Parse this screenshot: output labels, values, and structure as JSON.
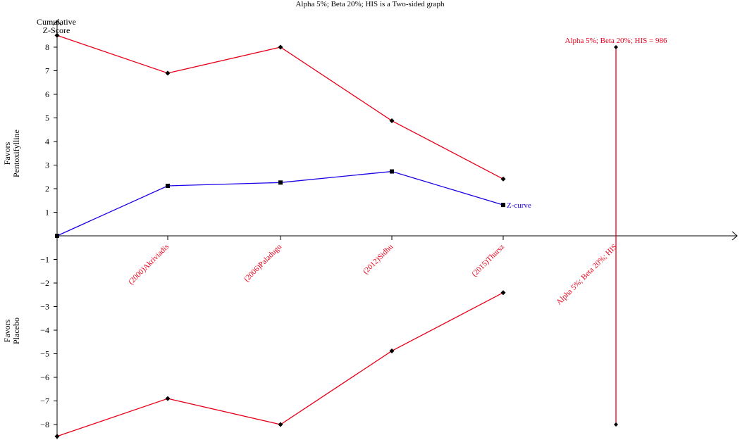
{
  "chart_data": {
    "type": "line",
    "title": "Alpha 5%; Beta 20%; HIS is a Two-sided graph",
    "ylabel": [
      "Cumulative",
      "Z-Score"
    ],
    "side_labels": {
      "upper": [
        "Favors",
        "Pentoxifylline"
      ],
      "lower": [
        "Favors",
        "Placebo"
      ]
    },
    "yticks": [
      8,
      7,
      6,
      5,
      4,
      3,
      2,
      1,
      -1,
      -2,
      -3,
      -4,
      -5,
      -6,
      -7,
      -8
    ],
    "ylim": [
      -8.5,
      8.5
    ],
    "categories": [
      "(2000)Akriviadis",
      "(2006)Paladugu",
      "(2012)Sidhu",
      "(2015)Thursz",
      "Alpha 5%; Beta 20%; HIS"
    ],
    "series": [
      {
        "name": "Z-curve",
        "color": "#1a00e6",
        "marker": "square",
        "values": [
          0,
          2.12,
          2.26,
          2.73,
          1.31
        ]
      },
      {
        "color": "#e8001a",
        "marker": "diamond",
        "values": [
          8.5,
          6.9,
          8.0,
          4.88,
          2.41
        ]
      },
      {
        "color": "#e8001a",
        "marker": "diamond",
        "values": [
          -8.5,
          -6.9,
          -8.0,
          -4.88,
          -2.41
        ]
      }
    ],
    "his_line": {
      "label": "Alpha 5%; Beta 20%; HIS = 986",
      "color": "#e8001a",
      "ymax": 8.0,
      "ymin": -8.0
    }
  }
}
